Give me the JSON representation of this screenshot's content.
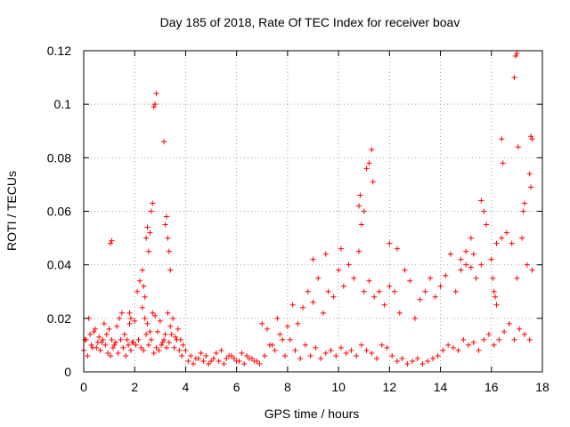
{
  "chart_data": {
    "type": "scatter",
    "title": "Day 185 of 2018, Rate Of TEC Index for receiver boav",
    "xlabel": "GPS time / hours",
    "ylabel": "ROTI / TECUs",
    "xlim": [
      0,
      18
    ],
    "ylim": [
      0,
      0.12
    ],
    "x_ticks": [
      0,
      2,
      4,
      6,
      8,
      10,
      12,
      14,
      16,
      18
    ],
    "x_tick_labels": [
      "0",
      "2",
      "4",
      "6",
      "8",
      "10",
      "12",
      "14",
      "16",
      "18"
    ],
    "y_ticks": [
      0,
      0.02,
      0.04,
      0.06,
      0.08,
      0.1,
      0.12
    ],
    "y_tick_labels": [
      "0",
      "0.02",
      "0.04",
      "0.06",
      "0.08",
      "0.1",
      "0.12"
    ],
    "grid": true,
    "marker": "+",
    "color": "#ff0000",
    "series": [
      {
        "name": "ROTI",
        "x": [
          0.0,
          0.1,
          0.2,
          0.3,
          0.4,
          0.5,
          0.6,
          0.7,
          0.8,
          0.9,
          1.0,
          1.1,
          1.2,
          1.3,
          1.4,
          1.5,
          1.6,
          1.7,
          1.8,
          1.9,
          2.0,
          2.1,
          2.2,
          2.3,
          2.4,
          2.5,
          2.6,
          2.7,
          2.8,
          2.9,
          3.0,
          3.1,
          3.2,
          3.3,
          3.4,
          3.5,
          3.6,
          3.7,
          3.8,
          3.9,
          4.0,
          4.2,
          4.4,
          4.6,
          4.8,
          5.0,
          5.2,
          5.4,
          5.6,
          5.8,
          6.0,
          6.2,
          6.4,
          6.6,
          6.8,
          7.0,
          7.2,
          7.4,
          7.6,
          7.8,
          8.0,
          8.2,
          8.4,
          8.6,
          8.8,
          9.0,
          9.2,
          9.4,
          9.6,
          9.8,
          10.0,
          10.2,
          10.4,
          10.6,
          10.8,
          11.0,
          11.2,
          11.4,
          11.6,
          11.8,
          12.0,
          12.2,
          12.4,
          12.6,
          12.8,
          13.0,
          13.2,
          13.4,
          13.6,
          13.8,
          14.0,
          14.2,
          14.4,
          14.6,
          14.8,
          15.0,
          15.2,
          15.4,
          15.6,
          15.8,
          16.0,
          16.2,
          16.4,
          16.6,
          16.8,
          17.0,
          17.2,
          17.4,
          17.6,
          0.05,
          0.15,
          0.25,
          0.35,
          0.45,
          0.55,
          0.65,
          0.75,
          0.85,
          0.95,
          1.05,
          1.15,
          1.25,
          1.35,
          1.45,
          1.55,
          1.65,
          1.75,
          1.85,
          1.95,
          2.05,
          2.15,
          2.25,
          2.35,
          2.45,
          2.55,
          2.65,
          2.75,
          2.85,
          2.95,
          3.05,
          3.15,
          3.25,
          3.35,
          3.45,
          3.55,
          3.65,
          3.75,
          3.85,
          4.1,
          4.3,
          4.5,
          4.7,
          4.9,
          5.1,
          5.3,
          5.5,
          5.7,
          5.9,
          6.1,
          6.3,
          6.5,
          6.7,
          6.9,
          7.1,
          7.3,
          7.5,
          7.7,
          7.9,
          8.1,
          8.3,
          8.5,
          8.7,
          8.9,
          9.1,
          9.3,
          9.5,
          9.7,
          9.9,
          10.1,
          10.3,
          10.5,
          10.7,
          10.9,
          11.1,
          11.3,
          11.5,
          11.7,
          11.9,
          12.1,
          12.3,
          12.5,
          12.7,
          12.9,
          13.1,
          13.3,
          13.5,
          13.7,
          13.9,
          14.1,
          14.3,
          14.5,
          14.7,
          14.9,
          15.1,
          15.3,
          15.5,
          15.7,
          15.9,
          16.1,
          16.3,
          16.5,
          16.7,
          16.9,
          17.1,
          17.3,
          17.5,
          1.05,
          1.1,
          2.6,
          2.65,
          2.7,
          2.75,
          2.8,
          2.85,
          3.15,
          3.2,
          3.25,
          3.3,
          3.35,
          3.4,
          2.45,
          2.5,
          2.55,
          10.8,
          10.85,
          10.9,
          11.0,
          11.1,
          11.2,
          11.3,
          11.35,
          15.6,
          15.7,
          16.4,
          16.45,
          16.9,
          16.95,
          17.0,
          17.05,
          17.55,
          17.6,
          17.5,
          17.55,
          17.25,
          17.3,
          16.05,
          16.1,
          16.15,
          16.2,
          2.3,
          2.35,
          2.4,
          1.8,
          1.85,
          9.0,
          9.5,
          10.1,
          12.0,
          12.3,
          14.8,
          15.0,
          15.2,
          15.3
        ],
        "y": [
          0.008,
          0.012,
          0.02,
          0.01,
          0.015,
          0.009,
          0.013,
          0.011,
          0.018,
          0.014,
          0.016,
          0.012,
          0.01,
          0.017,
          0.02,
          0.022,
          0.014,
          0.012,
          0.018,
          0.011,
          0.019,
          0.03,
          0.034,
          0.024,
          0.02,
          0.018,
          0.015,
          0.022,
          0.021,
          0.015,
          0.019,
          0.011,
          0.014,
          0.022,
          0.017,
          0.02,
          0.013,
          0.016,
          0.012,
          0.01,
          0.008,
          0.006,
          0.005,
          0.007,
          0.006,
          0.004,
          0.007,
          0.008,
          0.005,
          0.006,
          0.004,
          0.007,
          0.006,
          0.005,
          0.004,
          0.018,
          0.016,
          0.01,
          0.02,
          0.012,
          0.017,
          0.025,
          0.018,
          0.024,
          0.03,
          0.026,
          0.035,
          0.022,
          0.03,
          0.028,
          0.038,
          0.032,
          0.04,
          0.035,
          0.045,
          0.03,
          0.034,
          0.028,
          0.03,
          0.025,
          0.032,
          0.03,
          0.022,
          0.038,
          0.034,
          0.02,
          0.027,
          0.03,
          0.035,
          0.028,
          0.032,
          0.036,
          0.044,
          0.03,
          0.038,
          0.045,
          0.05,
          0.035,
          0.04,
          0.055,
          0.042,
          0.048,
          0.05,
          0.052,
          0.048,
          0.035,
          0.05,
          0.04,
          0.038,
          0.012,
          0.006,
          0.014,
          0.009,
          0.016,
          0.011,
          0.008,
          0.012,
          0.01,
          0.007,
          0.006,
          0.009,
          0.011,
          0.007,
          0.012,
          0.009,
          0.006,
          0.01,
          0.008,
          0.011,
          0.01,
          0.012,
          0.009,
          0.008,
          0.014,
          0.01,
          0.012,
          0.007,
          0.009,
          0.008,
          0.01,
          0.012,
          0.009,
          0.011,
          0.014,
          0.009,
          0.012,
          0.008,
          0.006,
          0.004,
          0.003,
          0.005,
          0.004,
          0.003,
          0.005,
          0.004,
          0.003,
          0.006,
          0.005,
          0.004,
          0.003,
          0.005,
          0.004,
          0.003,
          0.006,
          0.01,
          0.008,
          0.014,
          0.006,
          0.012,
          0.008,
          0.005,
          0.01,
          0.006,
          0.009,
          0.005,
          0.007,
          0.008,
          0.006,
          0.009,
          0.007,
          0.008,
          0.006,
          0.01,
          0.008,
          0.007,
          0.005,
          0.01,
          0.009,
          0.006,
          0.004,
          0.005,
          0.003,
          0.004,
          0.005,
          0.003,
          0.004,
          0.005,
          0.006,
          0.008,
          0.01,
          0.009,
          0.008,
          0.012,
          0.01,
          0.011,
          0.008,
          0.012,
          0.014,
          0.01,
          0.012,
          0.015,
          0.018,
          0.012,
          0.016,
          0.014,
          0.012,
          0.048,
          0.049,
          0.052,
          0.06,
          0.063,
          0.099,
          0.1,
          0.104,
          0.086,
          0.055,
          0.058,
          0.05,
          0.045,
          0.038,
          0.05,
          0.054,
          0.045,
          0.062,
          0.066,
          0.055,
          0.06,
          0.076,
          0.078,
          0.083,
          0.071,
          0.064,
          0.06,
          0.087,
          0.078,
          0.11,
          0.118,
          0.119,
          0.084,
          0.088,
          0.087,
          0.074,
          0.069,
          0.06,
          0.063,
          0.035,
          0.03,
          0.028,
          0.025,
          0.038,
          0.032,
          0.028,
          0.022,
          0.02,
          0.042,
          0.044,
          0.046,
          0.048,
          0.046,
          0.042,
          0.04,
          0.039,
          0.044
        ]
      }
    ]
  }
}
